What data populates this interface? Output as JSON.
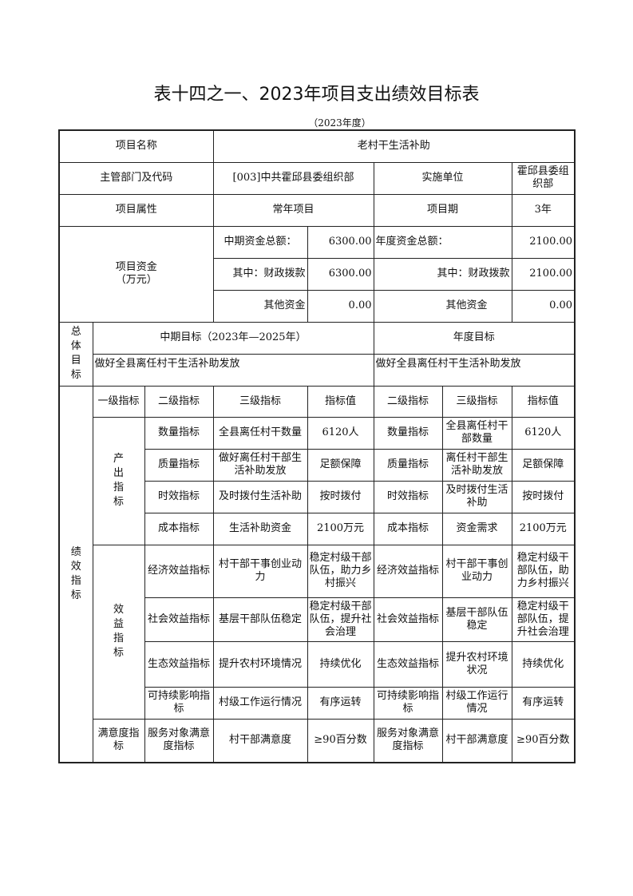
{
  "title": "表十四之一、2023年项目支出绩效目标表",
  "year": "（2023年度）",
  "info": {
    "name_label": "项目名称",
    "name": "老村干生活补助",
    "dept_label": "主管部门及代码",
    "dept": "[003]中共霍邱县委组织部",
    "unit_label": "实施单位",
    "unit": "霍邱县委组织部",
    "attr_label": "项目属性",
    "attr": "常年项目",
    "period_label": "项目期",
    "period": "3年",
    "funds_label": "项目资金",
    "funds_unit": "（万元）",
    "mid_total_label": "中期资金总额：",
    "mid_total": "6300.00",
    "year_total_label": "年度资金总额：",
    "year_total": "2100.00",
    "mid_fiscal_label": "其中：财政拨款",
    "mid_fiscal": "6300.00",
    "year_fiscal_label": "其中：财政拨款",
    "year_fiscal": "2100.00",
    "mid_other_label": "其他资金",
    "mid_other": "0.00",
    "year_other_label": "其他资金",
    "year_other": "0.00"
  },
  "goals": {
    "label": "总体目标",
    "mid_label": "中期目标（2023年—2025年）",
    "year_label": "年度目标",
    "mid": "做好全县离任村干生活补助发放",
    "year": "做好全县离任村干生活补助发放"
  },
  "perf": {
    "label": "绩效指标",
    "headers": [
      "一级指标",
      "二级指标",
      "三级指标",
      "指标值",
      "二级指标",
      "三级指标",
      "指标值"
    ],
    "groups": [
      "产出指标",
      "效益指标",
      "满意度指标"
    ],
    "rows": [
      [
        "数量指标",
        "全县离任村干数量",
        "6120人",
        "数量指标",
        "全县离任村干部数量",
        "6120人"
      ],
      [
        "质量指标",
        "做好离任村干部生活补助发放",
        "足额保障",
        "质量指标",
        "离任村干部生活补助发放",
        "足额保障"
      ],
      [
        "时效指标",
        "及时拨付生活补助",
        "按时拨付",
        "时效指标",
        "及时拨付生活补助",
        "按时拨付"
      ],
      [
        "成本指标",
        "生活补助资金",
        "2100万元",
        "成本指标",
        "资金需求",
        "2100万元"
      ],
      [
        "经济效益指标",
        "村干部干事创业动力",
        "稳定村级干部队伍，助力乡村振兴",
        "经济效益指标",
        "村干部干事创业动力",
        "稳定村级干部队伍，助力乡村振兴"
      ],
      [
        "社会效益指标",
        "基层干部队伍稳定",
        "稳定村级干部队伍，提升社会治理",
        "社会效益指标",
        "基层干部队伍稳定",
        "稳定村级干部队伍，提升社会治理"
      ],
      [
        "生态效益指标",
        "提升农村环境情况",
        "持续优化",
        "生态效益指标",
        "提升农村环境状况",
        "持续优化"
      ],
      [
        "可持续影响指标",
        "村级工作运行情况",
        "有序运转",
        "可持续影响指标",
        "村级工作运行情况",
        "有序运转"
      ],
      [
        "服务对象满意度指标",
        "村干部满意度",
        "≥90百分数",
        "服务对象满意度指标",
        "村干部满意度",
        "≥90百分数"
      ]
    ]
  }
}
